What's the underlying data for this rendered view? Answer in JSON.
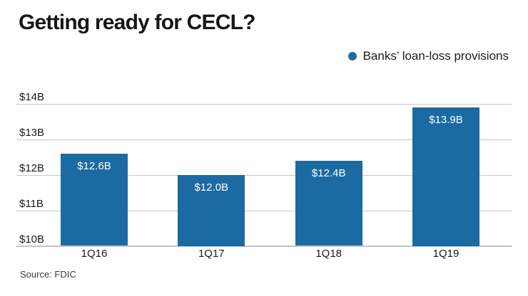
{
  "colors": {
    "background": "#ffffff",
    "bar": "#1c6aa2",
    "legend_marker": "#1c6aa2",
    "gridline": "#c6c6c6",
    "baseline": "#c3c3c3",
    "title_text": "#161616",
    "axis_text": "#1a1a1a",
    "bar_label_text": "#ffffff",
    "source_text": "#3a3a3a"
  },
  "chart_data": {
    "type": "bar",
    "title": "Getting ready for CECL?",
    "series_name": "Banks’ loan-loss provisions",
    "categories": [
      "1Q16",
      "1Q17",
      "1Q18",
      "1Q19"
    ],
    "values": [
      12.6,
      12.0,
      12.4,
      13.9
    ],
    "value_labels": [
      "$12.6B",
      "$12.0B",
      "$12.4B",
      "$13.9B"
    ],
    "ylim": [
      10,
      14
    ],
    "yticks": [
      10,
      11,
      12,
      13,
      14
    ],
    "ytick_labels": [
      "$10B",
      "$11B",
      "$12B",
      "$13B",
      "$14B"
    ],
    "grid": true,
    "legend_position": "top-right",
    "value_label_position": "inside-top",
    "source_note": "Source: FDIC"
  }
}
